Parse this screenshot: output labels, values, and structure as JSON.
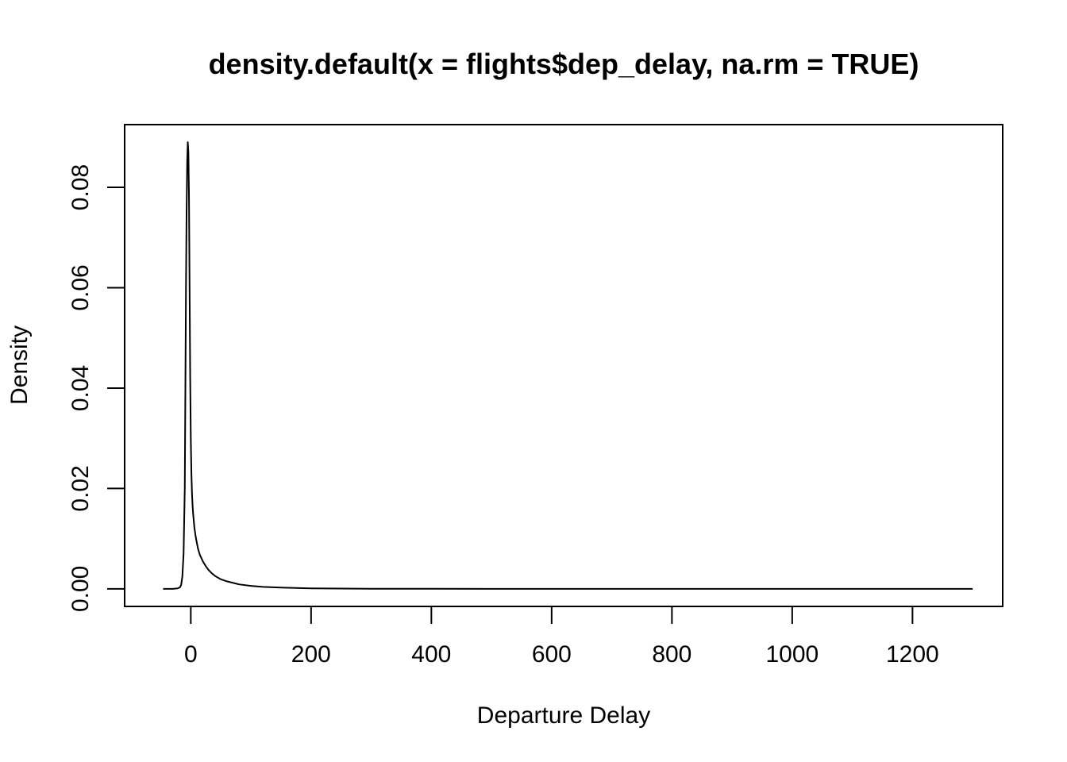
{
  "chart_data": {
    "type": "line",
    "title": "density.default(x = flights$dep_delay, na.rm = TRUE)",
    "xlabel": "Departure Delay",
    "ylabel": "Density",
    "xlim": [
      -110,
      1350
    ],
    "ylim": [
      -0.0035,
      0.0925
    ],
    "x_ticks": [
      0,
      200,
      400,
      600,
      800,
      1000,
      1200
    ],
    "x_tick_labels": [
      "0",
      "200",
      "400",
      "600",
      "800",
      "1000",
      "1200"
    ],
    "y_ticks": [
      0,
      0.02,
      0.04,
      0.06,
      0.08
    ],
    "y_tick_labels": [
      "0.00",
      "0.02",
      "0.04",
      "0.06",
      "0.08"
    ],
    "grid": false,
    "line_color": "#000000",
    "series": [
      {
        "x": [
          -46,
          -30,
          -22,
          -18,
          -16,
          -14,
          -12,
          -10,
          -9,
          -8,
          -7,
          -6,
          -5,
          -4,
          -3,
          -2,
          -1,
          0,
          1,
          2,
          3,
          4,
          5,
          6,
          8,
          10,
          12,
          15,
          20,
          25,
          30,
          35,
          40,
          50,
          60,
          70,
          80,
          100,
          120,
          150,
          200,
          250,
          300,
          400,
          500,
          600,
          800,
          1000,
          1200,
          1300
        ],
        "y": [
          0,
          0,
          0.0001,
          0.0003,
          0.0008,
          0.0025,
          0.007,
          0.02,
          0.04,
          0.06,
          0.075,
          0.085,
          0.089,
          0.087,
          0.078,
          0.06,
          0.042,
          0.03,
          0.023,
          0.019,
          0.0165,
          0.0148,
          0.0135,
          0.0122,
          0.0105,
          0.0092,
          0.008,
          0.0068,
          0.0055,
          0.0045,
          0.0037,
          0.0031,
          0.0026,
          0.0019,
          0.0015,
          0.0012,
          0.0009,
          0.0006,
          0.0004,
          0.00025,
          0.0001,
          5e-05,
          2e-05,
          1e-05,
          0,
          0,
          0,
          0,
          0,
          0
        ]
      }
    ]
  }
}
